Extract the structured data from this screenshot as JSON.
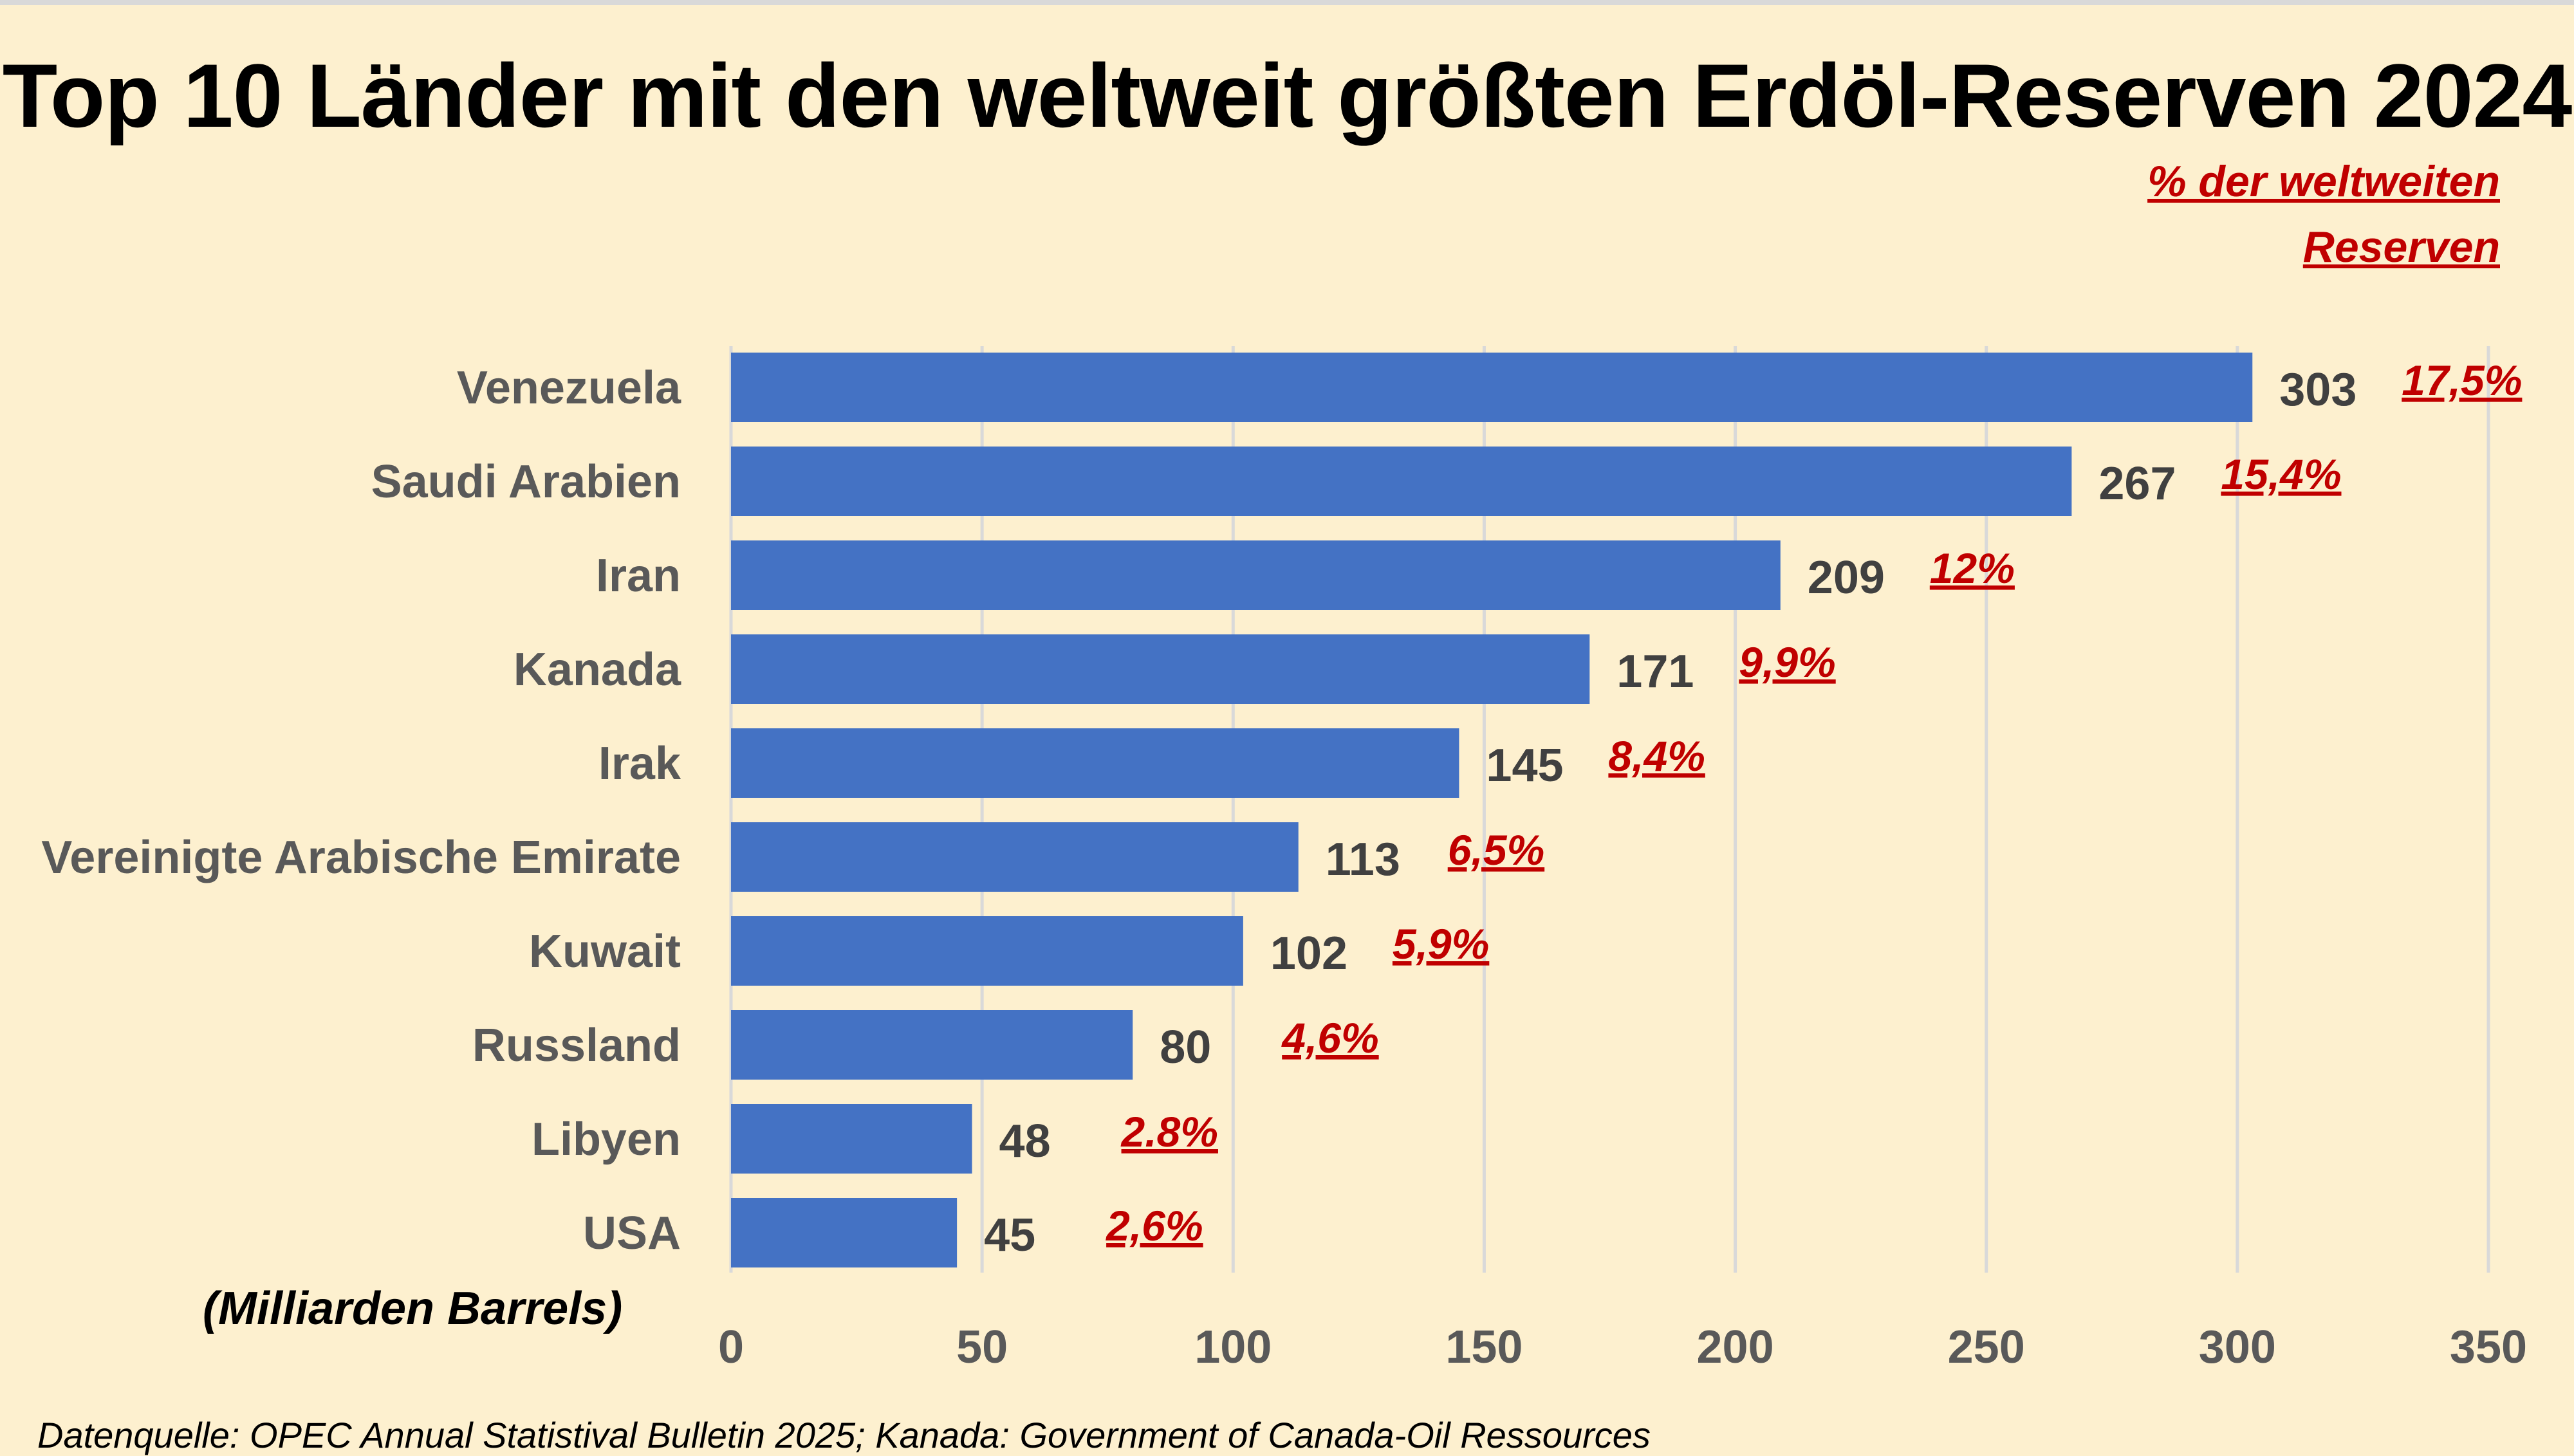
{
  "chart_data": {
    "type": "bar",
    "orientation": "horizontal",
    "title": "Top 10 Länder mit den weltweit größten Erdöl-Reserven 2024",
    "percent_header": [
      "% der weltweiten",
      "Reserven"
    ],
    "categories": [
      "Venezuela",
      "Saudi Arabien",
      "Iran",
      "Kanada",
      "Irak",
      "Vereinigte Arabische Emirate",
      "Kuwait",
      "Russland",
      "Libyen",
      "USA"
    ],
    "values": [
      303,
      267,
      209,
      171,
      145,
      113,
      102,
      80,
      48,
      45
    ],
    "value_labels": [
      "303",
      "267",
      "209",
      "171",
      "145",
      "113",
      "102",
      "80",
      "48",
      "45"
    ],
    "percent_labels": [
      "17,5%",
      "15,4%",
      "12%",
      "9,9%",
      "8,4%",
      "6,5%",
      "5,9%",
      "4,6%",
      "2.8%",
      "2,6%"
    ],
    "xlim": [
      0,
      350
    ],
    "xticks": [
      "0",
      "50",
      "100",
      "150",
      "200",
      "250",
      "300",
      "350"
    ],
    "xlabel": "(Milliarden Barrels)",
    "grid": true,
    "bar_color": "#4472c4",
    "percent_color": "#c00000",
    "source": "Datenquelle: OPEC Annual Statistival Bulletin 2025; Kanada: Government of Canada-Oil Ressources"
  }
}
